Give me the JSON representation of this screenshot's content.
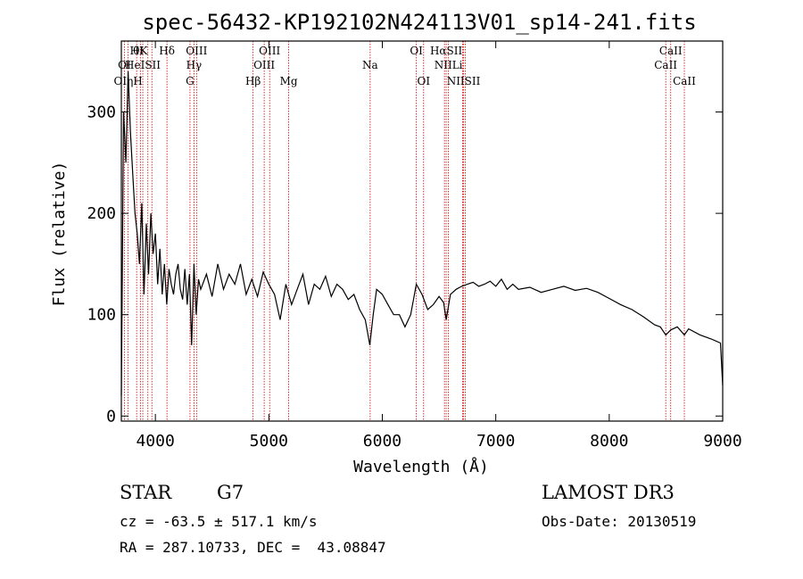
{
  "chart_data": {
    "type": "line",
    "title": "spec-56432-KP192102N424113V01_sp14-241.fits",
    "xlabel": "Wavelength (Å)",
    "ylabel": "Flux (relative)",
    "xlim": [
      3700,
      9000
    ],
    "ylim": [
      -5,
      370
    ],
    "x_ticks": [
      4000,
      5000,
      6000,
      7000,
      8000,
      9000
    ],
    "y_ticks": [
      0,
      100,
      200,
      300
    ],
    "grid": false,
    "series": [
      {
        "x": [
          3700,
          3720,
          3740,
          3760,
          3780,
          3800,
          3820,
          3840,
          3860,
          3880,
          3900,
          3920,
          3940,
          3960,
          3980,
          4000,
          4020,
          4040,
          4060,
          4080,
          4100,
          4120,
          4140,
          4160,
          4180,
          4200,
          4220,
          4240,
          4260,
          4280,
          4300,
          4320,
          4340,
          4360,
          4380,
          4400,
          4450,
          4500,
          4550,
          4600,
          4650,
          4700,
          4750,
          4800,
          4850,
          4900,
          4950,
          5000,
          5050,
          5100,
          5150,
          5200,
          5250,
          5300,
          5350,
          5400,
          5450,
          5500,
          5550,
          5600,
          5650,
          5700,
          5750,
          5800,
          5850,
          5890,
          5920,
          5950,
          6000,
          6050,
          6100,
          6150,
          6200,
          6250,
          6300,
          6350,
          6400,
          6450,
          6500,
          6540,
          6563,
          6600,
          6650,
          6700,
          6750,
          6800,
          6850,
          6900,
          6950,
          7000,
          7050,
          7100,
          7150,
          7200,
          7300,
          7400,
          7500,
          7600,
          7700,
          7800,
          7900,
          8000,
          8100,
          8200,
          8300,
          8400,
          8450,
          8498,
          8542,
          8600,
          8662,
          8700,
          8800,
          8900,
          8980,
          9000
        ],
        "y": [
          20,
          300,
          250,
          340,
          280,
          240,
          200,
          180,
          150,
          210,
          120,
          190,
          140,
          200,
          160,
          180,
          130,
          165,
          120,
          150,
          110,
          145,
          130,
          120,
          140,
          150,
          125,
          115,
          145,
          110,
          140,
          70,
          150,
          100,
          135,
          125,
          140,
          118,
          150,
          125,
          140,
          130,
          150,
          120,
          135,
          118,
          142,
          130,
          120,
          95,
          130,
          110,
          125,
          140,
          110,
          130,
          125,
          138,
          118,
          130,
          125,
          115,
          120,
          105,
          95,
          70,
          100,
          125,
          120,
          110,
          100,
          100,
          88,
          100,
          130,
          120,
          105,
          110,
          118,
          112,
          95,
          120,
          125,
          128,
          130,
          132,
          128,
          130,
          133,
          128,
          135,
          125,
          130,
          125,
          127,
          122,
          125,
          128,
          124,
          126,
          122,
          116,
          110,
          105,
          98,
          90,
          88,
          80,
          85,
          88,
          80,
          86,
          80,
          76,
          72,
          30
        ]
      }
    ],
    "spectral_lines": [
      {
        "label": "HI",
        "x": 3835,
        "row": 1
      },
      {
        "label": "θK",
        "x": 3868,
        "row": 1
      },
      {
        "label": "Hδ",
        "x": 4102,
        "row": 1
      },
      {
        "label": "OIII",
        "x": 4363,
        "row": 1
      },
      {
        "label": "OIII",
        "x": 5007,
        "row": 1
      },
      {
        "label": "OI",
        "x": 6300,
        "row": 1
      },
      {
        "label": "HαSII",
        "x": 6563,
        "row": 1
      },
      {
        "label": "CaII",
        "x": 8542,
        "row": 1
      },
      {
        "label": "OI",
        "x": 3727,
        "row": 2
      },
      {
        "label": "HeISII",
        "x": 3889,
        "row": 2
      },
      {
        "label": "Hγ",
        "x": 4340,
        "row": 2
      },
      {
        "label": "OIII",
        "x": 4959,
        "row": 2
      },
      {
        "label": "Na",
        "x": 5893,
        "row": 2
      },
      {
        "label": "NIILi",
        "x": 6583,
        "row": 2
      },
      {
        "label": "CaII",
        "x": 8498,
        "row": 2
      },
      {
        "label": "OIηH",
        "x": 3760,
        "row": 3
      },
      {
        "label": "G",
        "x": 4305,
        "row": 3
      },
      {
        "label": "Hβ",
        "x": 4861,
        "row": 3
      },
      {
        "label": "Mg",
        "x": 5175,
        "row": 3
      },
      {
        "label": "OI",
        "x": 6364,
        "row": 3
      },
      {
        "label": "NIISII",
        "x": 6716,
        "row": 3
      },
      {
        "label": "CaII",
        "x": 8662,
        "row": 3
      }
    ],
    "line_markers": [
      3727,
      3760,
      3835,
      3868,
      3889,
      3934,
      3969,
      4102,
      4305,
      4340,
      4363,
      4861,
      4959,
      5007,
      5175,
      5893,
      6300,
      6364,
      6548,
      6563,
      6583,
      6708,
      6716,
      6731,
      8498,
      8542,
      8662
    ],
    "line_color": "#cc0000"
  },
  "info": {
    "object_class": "STAR",
    "subclass": "G7",
    "survey": "LAMOST DR3",
    "cz": "cz = -63.5 ± 517.1 km/s",
    "obs_date": "Obs-Date: 20130519",
    "coords": "RA = 287.10733, DEC =  43.08847"
  }
}
